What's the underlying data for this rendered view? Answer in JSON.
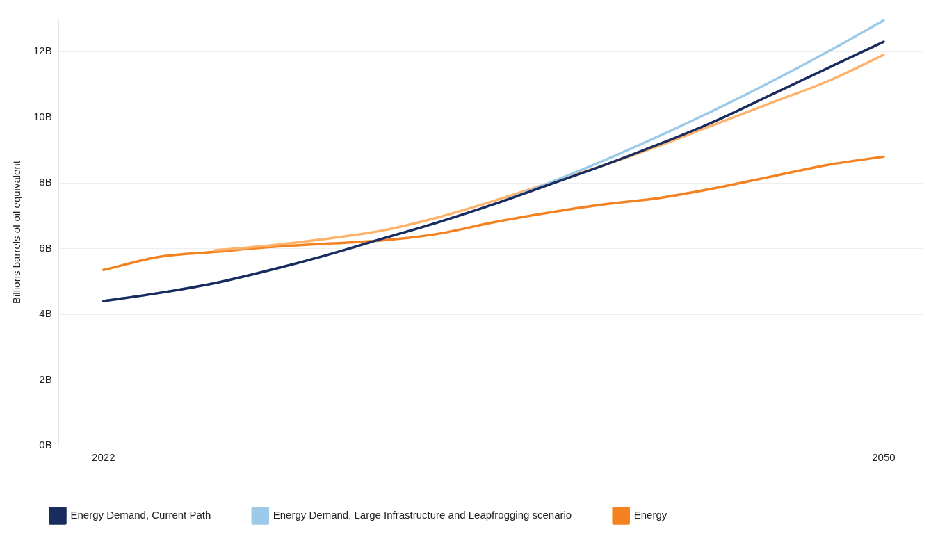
{
  "chart_data": {
    "type": "line",
    "ylabel": "Billions barrels of oil equivalent",
    "x": [
      2022,
      2024,
      2026,
      2028,
      2030,
      2032,
      2034,
      2036,
      2038,
      2040,
      2042,
      2044,
      2046,
      2048,
      2050
    ],
    "series": [
      {
        "name": "Energy Demand, Current Path",
        "color": "#1a2b5e",
        "values": [
          4.4,
          4.65,
          4.95,
          5.35,
          5.8,
          6.3,
          6.8,
          7.35,
          7.95,
          8.55,
          9.2,
          9.9,
          10.7,
          11.5,
          12.3
        ]
      },
      {
        "name": "Energy Demand, Large Infrastructure and Leapfrogging scenario",
        "color": "#9ecae9",
        "values": [
          4.4,
          4.65,
          4.95,
          5.35,
          5.8,
          6.3,
          6.8,
          7.35,
          8.0,
          8.7,
          9.45,
          10.25,
          11.1,
          12.0,
          12.95
        ]
      },
      {
        "color": "#fdb36b",
        "values": [
          null,
          null,
          5.95,
          6.1,
          6.3,
          6.55,
          6.95,
          7.45,
          8.0,
          8.55,
          9.15,
          9.8,
          10.45,
          11.1,
          11.9
        ]
      },
      {
        "name": "Energy",
        "color": "#f58220",
        "values": [
          5.35,
          5.75,
          5.9,
          6.05,
          6.15,
          6.25,
          6.45,
          6.8,
          7.1,
          7.35,
          7.55,
          7.85,
          8.2,
          8.55,
          8.8
        ]
      }
    ],
    "xlim": [
      2020.4,
      2051.4
    ],
    "xticks": [
      2022,
      2050
    ],
    "ylim": [
      0,
      13
    ],
    "yticks": [
      {
        "value": 0,
        "label": "0B"
      },
      {
        "value": 2,
        "label": "2B"
      },
      {
        "value": 4,
        "label": "4B"
      },
      {
        "value": 6,
        "label": "6B"
      },
      {
        "value": 8,
        "label": "8B"
      },
      {
        "value": 10,
        "label": "10B"
      },
      {
        "value": 12,
        "label": "12B"
      }
    ],
    "grid": "y",
    "legend": "bottom",
    "marker": "none",
    "line_style": "solid"
  }
}
